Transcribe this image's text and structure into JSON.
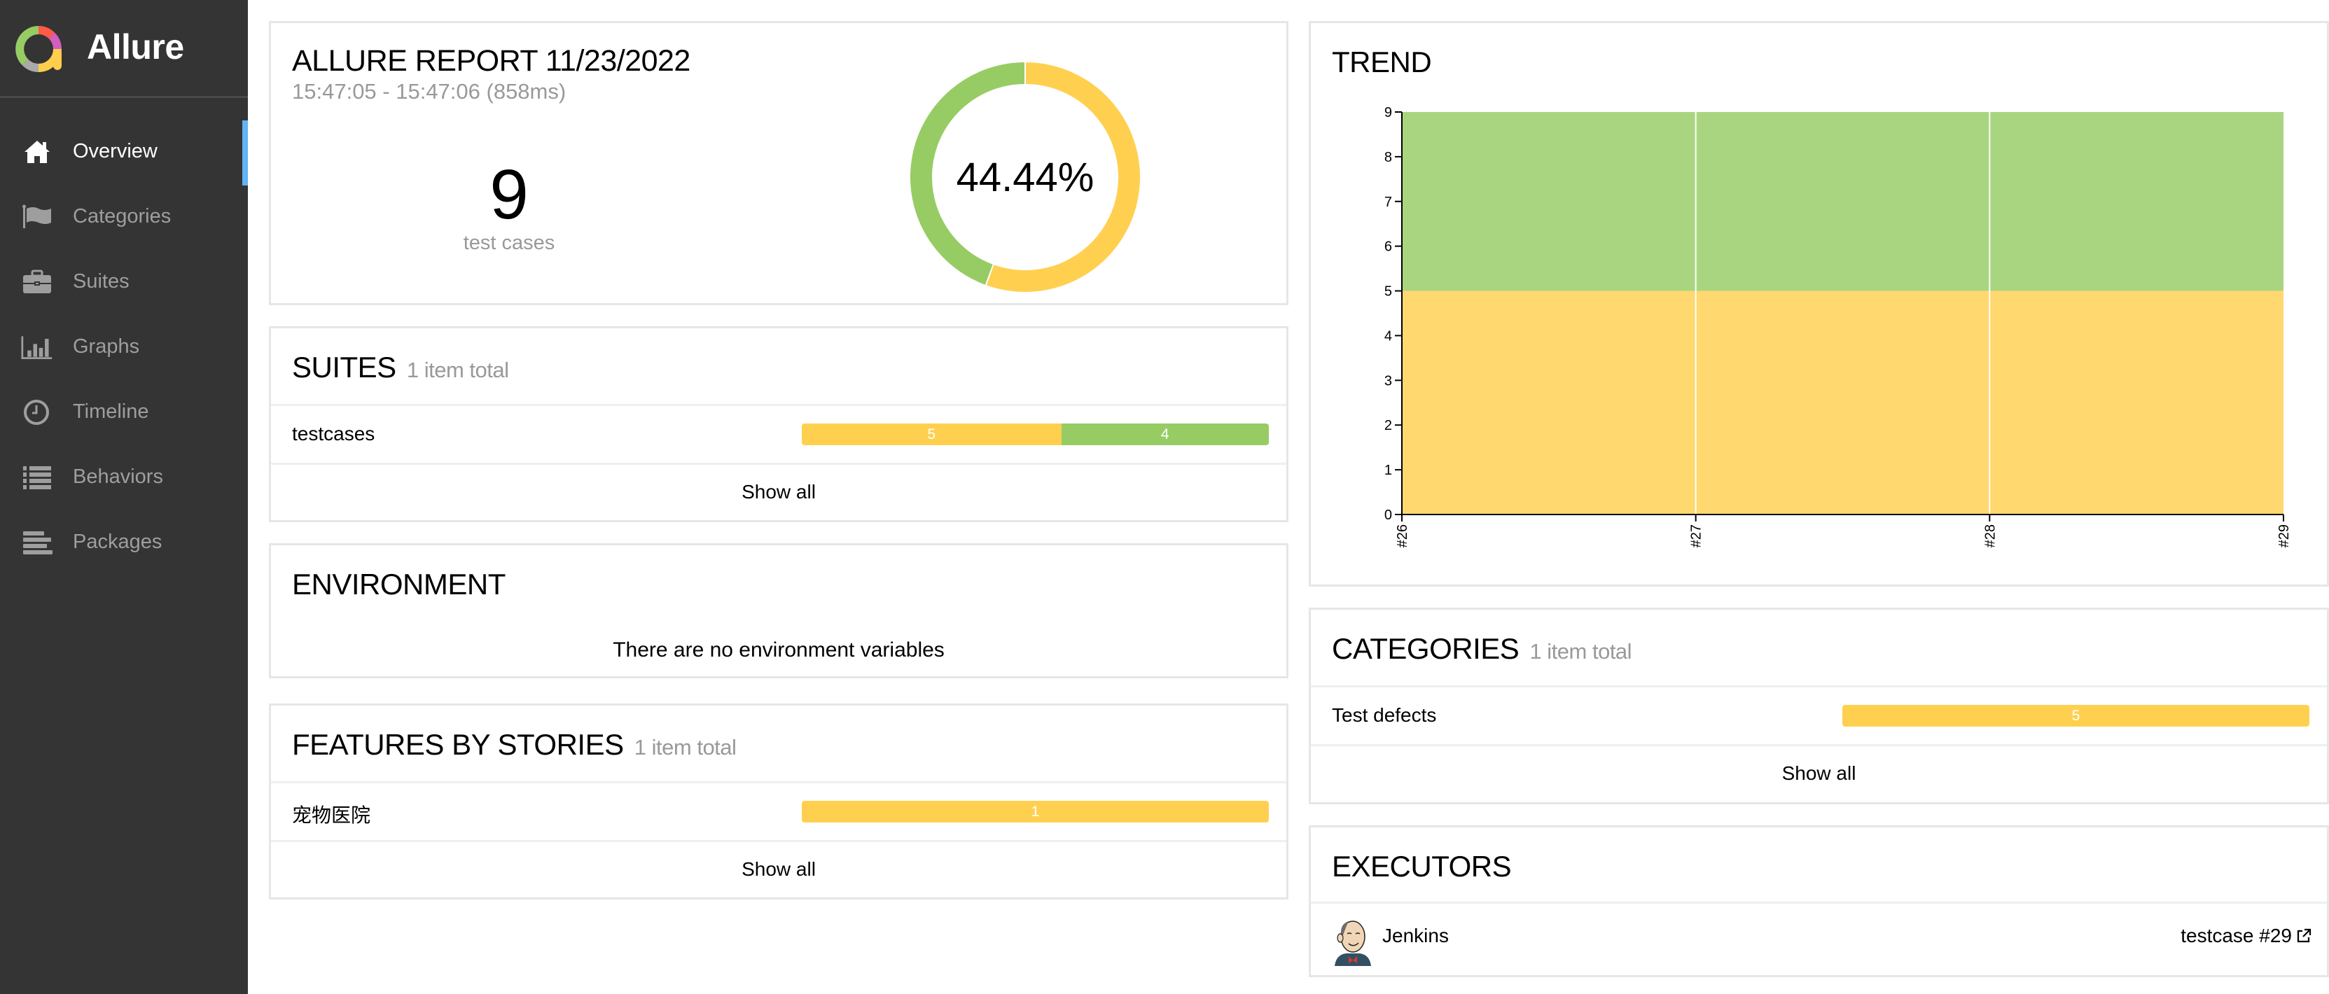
{
  "brand": {
    "name": "Allure",
    "logo_icon": "allure-logo-icon"
  },
  "sidebar": {
    "items": [
      {
        "label": "Overview",
        "icon": "home-icon",
        "active": true
      },
      {
        "label": "Categories",
        "icon": "flag-icon",
        "active": false
      },
      {
        "label": "Suites",
        "icon": "briefcase-icon",
        "active": false
      },
      {
        "label": "Graphs",
        "icon": "bar-chart-icon",
        "active": false
      },
      {
        "label": "Timeline",
        "icon": "clock-icon",
        "active": false
      },
      {
        "label": "Behaviors",
        "icon": "list-icon",
        "active": false
      },
      {
        "label": "Packages",
        "icon": "align-left-icon",
        "active": false
      }
    ]
  },
  "colors": {
    "broken": "#ffd050",
    "passed": "#97cc64",
    "trend_broken": "#ffd870",
    "trend_passed": "#aad580",
    "accent": "#62b4f5",
    "sidebar_bg": "#343434"
  },
  "summary": {
    "title": "ALLURE REPORT 11/23/2022",
    "time_range": "15:47:05 - 15:47:06 (858ms)",
    "total": "9",
    "total_label": "test cases",
    "percent_label": "44.44%",
    "statuses": [
      {
        "name": "broken",
        "count": 5
      },
      {
        "name": "passed",
        "count": 4
      }
    ]
  },
  "suites": {
    "title": "SUITES",
    "count_label": "1 item total",
    "rows": [
      {
        "name": "testcases",
        "segments": [
          {
            "status": "broken",
            "count": 5
          },
          {
            "status": "passed",
            "count": 4
          }
        ]
      }
    ],
    "show_all": "Show all"
  },
  "environment": {
    "title": "ENVIRONMENT",
    "empty_message": "There are no environment variables"
  },
  "features": {
    "title": "FEATURES BY STORIES",
    "count_label": "1 item total",
    "rows": [
      {
        "name": "宠物医院",
        "segments": [
          {
            "status": "broken",
            "count": 1
          }
        ]
      }
    ],
    "show_all": "Show all"
  },
  "trend": {
    "title": "TREND"
  },
  "chart_data": {
    "type": "area",
    "title": "TREND",
    "x": [
      "#26",
      "#27",
      "#28",
      "#29"
    ],
    "series": [
      {
        "name": "broken",
        "values": [
          5,
          5,
          5,
          5
        ]
      },
      {
        "name": "passed",
        "values": [
          4,
          4,
          4,
          4
        ]
      }
    ],
    "stacked": true,
    "ylim": [
      0,
      9
    ],
    "yticks": [
      0,
      1,
      2,
      3,
      4,
      5,
      6,
      7,
      8,
      9
    ],
    "xlabel": "",
    "ylabel": "",
    "grid": "vertical",
    "legend": "none"
  },
  "categories": {
    "title": "CATEGORIES",
    "count_label": "1 item total",
    "rows": [
      {
        "name": "Test defects",
        "segments": [
          {
            "status": "broken",
            "count": 5
          }
        ]
      }
    ],
    "show_all": "Show all"
  },
  "executors": {
    "title": "EXECUTORS",
    "items": [
      {
        "name": "Jenkins",
        "build": "testcase #29",
        "avatar_icon": "jenkins-avatar-icon",
        "link_icon": "external-link-icon"
      }
    ]
  }
}
